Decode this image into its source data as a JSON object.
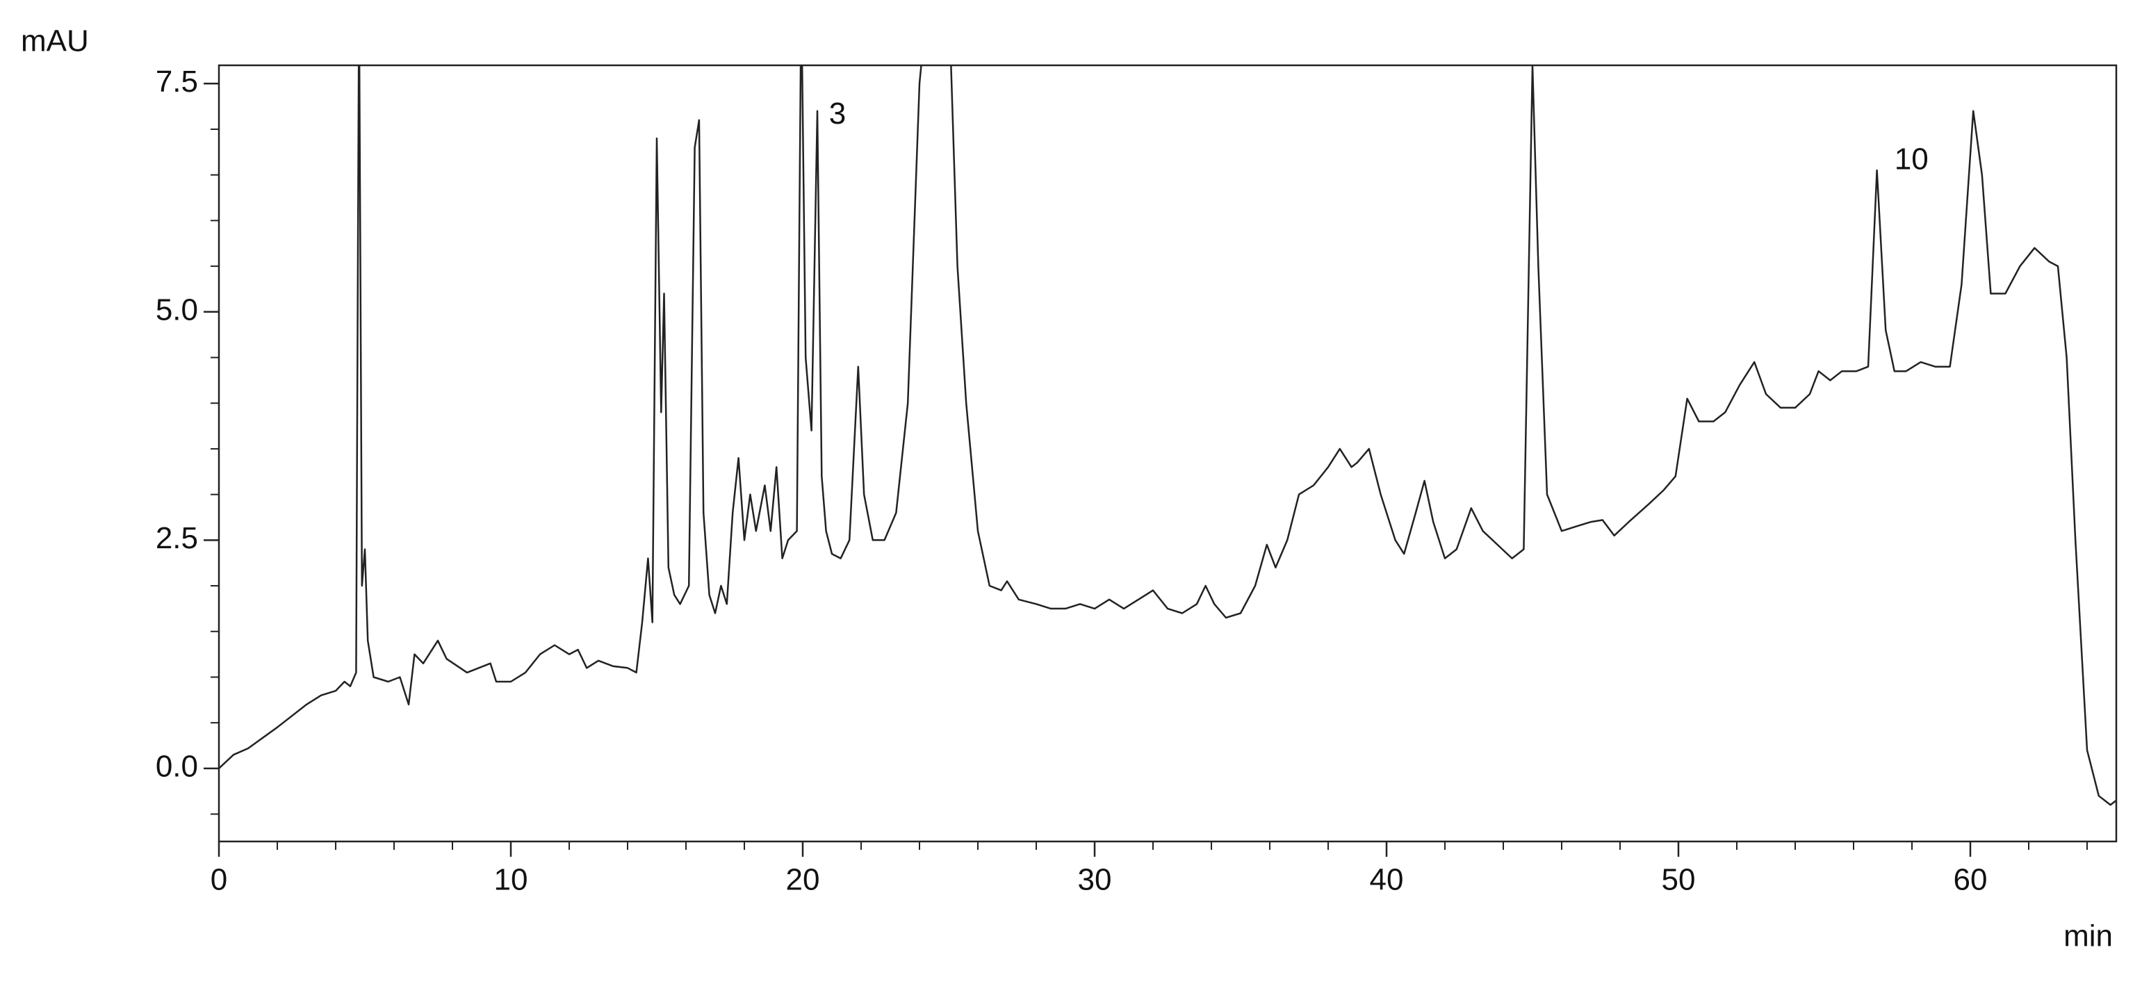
{
  "chart_data": {
    "type": "line",
    "y_label": "mAU",
    "x_label": "min",
    "xlim": [
      0,
      65
    ],
    "ylim": [
      -0.8,
      7.7
    ],
    "xticks": [
      0,
      10,
      20,
      30,
      40,
      50,
      60
    ],
    "yticks": [
      {
        "value": 0,
        "label": "0.0"
      },
      {
        "value": 2.5,
        "label": "2.5"
      },
      {
        "value": 5,
        "label": "5.0"
      },
      {
        "value": 7.5,
        "label": "7.5"
      }
    ],
    "xminorticks": [
      2,
      4,
      6,
      8,
      12,
      14,
      16,
      18,
      22,
      24,
      26,
      28,
      32,
      34,
      36,
      38,
      42,
      44,
      46,
      48,
      52,
      54,
      56,
      58,
      62,
      64
    ],
    "yminorticks": [
      -0.5,
      0.5,
      1,
      1.5,
      2,
      3,
      3.5,
      4,
      4.5,
      5.5,
      6,
      6.5,
      7
    ],
    "annotations": [
      {
        "text": "3",
        "x": 20.9,
        "y": 7.15
      },
      {
        "text": "10",
        "x": 57.4,
        "y": 6.65
      }
    ],
    "x": [
      0,
      0.5,
      1,
      2,
      3,
      3.5,
      4,
      4.3,
      4.5,
      4.7,
      4.8,
      4.9,
      5.0,
      5.1,
      5.3,
      5.8,
      6.2,
      6.5,
      6.7,
      7.0,
      7.5,
      7.8,
      8.5,
      9.3,
      9.5,
      10,
      10.5,
      11,
      11.5,
      12,
      12.3,
      12.6,
      13,
      13.5,
      14,
      14.3,
      14.5,
      14.7,
      14.85,
      15.0,
      15.15,
      15.25,
      15.4,
      15.6,
      15.8,
      16.1,
      16.3,
      16.45,
      16.6,
      16.8,
      17.0,
      17.2,
      17.4,
      17.6,
      17.8,
      18.0,
      18.2,
      18.4,
      18.7,
      18.9,
      19.1,
      19.3,
      19.5,
      19.8,
      19.95,
      20.1,
      20.3,
      20.5,
      20.65,
      20.8,
      21.0,
      21.3,
      21.6,
      21.9,
      22.1,
      22.4,
      22.8,
      23.2,
      23.6,
      24.0,
      24.3,
      25.0,
      25.3,
      25.6,
      26.0,
      26.4,
      26.8,
      27.0,
      27.4,
      28,
      28.5,
      29,
      29.5,
      30,
      30.5,
      31,
      31.5,
      32,
      32.5,
      33,
      33.5,
      33.8,
      34.1,
      34.5,
      35,
      35.5,
      35.9,
      36.2,
      36.6,
      37.0,
      37.5,
      38.0,
      38.4,
      38.8,
      39.0,
      39.4,
      39.8,
      40.3,
      40.6,
      41.0,
      41.3,
      41.6,
      42.0,
      42.4,
      42.9,
      43.3,
      43.8,
      44.3,
      44.7,
      45.0,
      45.2,
      45.5,
      46,
      46.5,
      47,
      47.4,
      47.8,
      48.3,
      49,
      49.5,
      49.9,
      50.3,
      50.7,
      51.2,
      51.6,
      52.1,
      52.6,
      53.0,
      53.5,
      54.0,
      54.5,
      54.8,
      55.2,
      55.6,
      56.1,
      56.5,
      56.8,
      57.1,
      57.4,
      57.8,
      58.3,
      58.8,
      59.3,
      59.7,
      60.1,
      60.4,
      60.7,
      61.2,
      61.7,
      62.2,
      62.7,
      63.0,
      63.3,
      63.6,
      64.0,
      64.4,
      64.8,
      65
    ],
    "series": [
      {
        "name": "signal",
        "color": "#222222",
        "values": [
          0,
          0.15,
          0.22,
          0.45,
          0.7,
          0.8,
          0.85,
          0.95,
          0.9,
          1.05,
          8.5,
          2.0,
          2.4,
          1.4,
          1.0,
          0.95,
          1.0,
          0.7,
          1.25,
          1.15,
          1.4,
          1.2,
          1.05,
          1.15,
          0.95,
          0.95,
          1.05,
          1.25,
          1.35,
          1.25,
          1.3,
          1.1,
          1.18,
          1.12,
          1.1,
          1.05,
          1.6,
          2.3,
          1.6,
          6.9,
          3.9,
          5.2,
          2.2,
          1.9,
          1.8,
          2.0,
          6.8,
          7.1,
          2.8,
          1.9,
          1.7,
          2.0,
          1.8,
          2.8,
          3.4,
          2.5,
          3.0,
          2.6,
          3.1,
          2.6,
          3.3,
          2.3,
          2.5,
          2.6,
          8.5,
          4.5,
          3.7,
          7.2,
          3.2,
          2.6,
          2.35,
          2.3,
          2.5,
          4.4,
          3.0,
          2.5,
          2.5,
          2.8,
          4.0,
          7.5,
          8.5,
          8.5,
          5.5,
          4.0,
          2.6,
          2.0,
          1.95,
          2.05,
          1.85,
          1.8,
          1.75,
          1.75,
          1.8,
          1.75,
          1.85,
          1.75,
          1.85,
          1.95,
          1.75,
          1.7,
          1.8,
          2.0,
          1.8,
          1.65,
          1.7,
          2.0,
          2.45,
          2.2,
          2.5,
          3.0,
          3.1,
          3.3,
          3.5,
          3.3,
          3.35,
          3.5,
          3.0,
          2.5,
          2.35,
          2.8,
          3.15,
          2.7,
          2.3,
          2.4,
          2.85,
          2.6,
          2.45,
          2.3,
          2.4,
          7.7,
          5.5,
          3.0,
          2.6,
          2.65,
          2.7,
          2.72,
          2.55,
          2.7,
          2.9,
          3.05,
          3.2,
          4.05,
          3.8,
          3.8,
          3.9,
          4.2,
          4.45,
          4.1,
          3.95,
          3.95,
          4.1,
          4.35,
          4.25,
          4.35,
          4.35,
          4.4,
          6.55,
          4.8,
          4.35,
          4.35,
          4.45,
          4.4,
          4.4,
          5.3,
          7.2,
          6.5,
          5.2,
          5.2,
          5.5,
          5.7,
          5.55,
          5.5,
          4.5,
          2.5,
          0.2,
          -0.3,
          -0.4,
          -0.35
        ]
      }
    ]
  }
}
